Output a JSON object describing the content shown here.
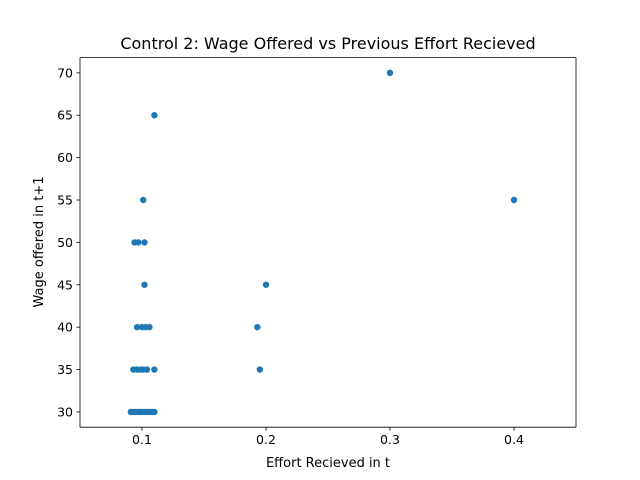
{
  "chart_data": {
    "type": "scatter",
    "title": "Control 2: Wage Offered vs Previous Effort Recieved",
    "xlabel": "Effort Recieved in t",
    "ylabel": "Wage offered in t+1",
    "xlim": [
      0.05,
      0.45
    ],
    "ylim": [
      28.2,
      71.8
    ],
    "xticks": [
      0.1,
      0.2,
      0.3,
      0.4
    ],
    "xtick_labels": [
      "0.1",
      "0.2",
      "0.3",
      "0.4"
    ],
    "yticks": [
      30,
      35,
      40,
      45,
      50,
      55,
      60,
      65,
      70
    ],
    "ytick_labels": [
      "30",
      "35",
      "40",
      "45",
      "50",
      "55",
      "60",
      "65",
      "70"
    ],
    "grid": false,
    "legend": false,
    "marker_color": "#1f77b4",
    "points": [
      {
        "x": 0.3,
        "y": 70
      },
      {
        "x": 0.11,
        "y": 65
      },
      {
        "x": 0.101,
        "y": 55
      },
      {
        "x": 0.4,
        "y": 55
      },
      {
        "x": 0.094,
        "y": 50
      },
      {
        "x": 0.097,
        "y": 50
      },
      {
        "x": 0.102,
        "y": 50
      },
      {
        "x": 0.102,
        "y": 45
      },
      {
        "x": 0.2,
        "y": 45
      },
      {
        "x": 0.096,
        "y": 40
      },
      {
        "x": 0.1,
        "y": 40
      },
      {
        "x": 0.103,
        "y": 40
      },
      {
        "x": 0.106,
        "y": 40
      },
      {
        "x": 0.193,
        "y": 40
      },
      {
        "x": 0.093,
        "y": 35
      },
      {
        "x": 0.096,
        "y": 35
      },
      {
        "x": 0.099,
        "y": 35
      },
      {
        "x": 0.101,
        "y": 35
      },
      {
        "x": 0.104,
        "y": 35
      },
      {
        "x": 0.11,
        "y": 35
      },
      {
        "x": 0.195,
        "y": 35
      },
      {
        "x": 0.091,
        "y": 30
      },
      {
        "x": 0.093,
        "y": 30
      },
      {
        "x": 0.095,
        "y": 30
      },
      {
        "x": 0.097,
        "y": 30
      },
      {
        "x": 0.099,
        "y": 30
      },
      {
        "x": 0.1,
        "y": 30
      },
      {
        "x": 0.102,
        "y": 30
      },
      {
        "x": 0.104,
        "y": 30
      },
      {
        "x": 0.106,
        "y": 30
      },
      {
        "x": 0.108,
        "y": 30
      },
      {
        "x": 0.11,
        "y": 30
      }
    ]
  }
}
